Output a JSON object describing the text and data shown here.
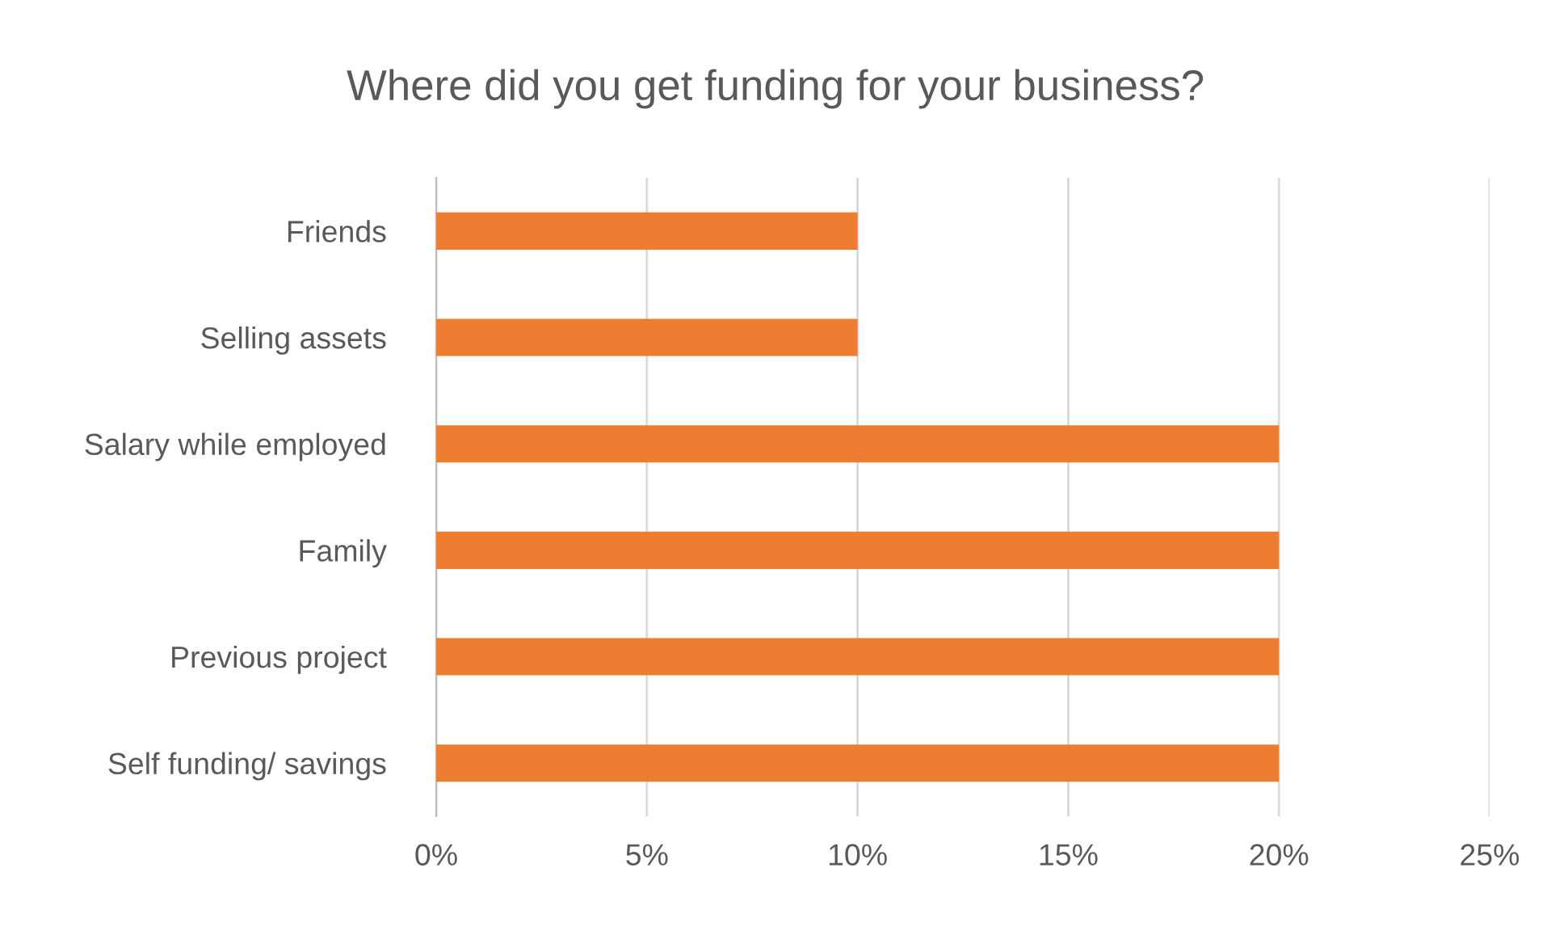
{
  "chart_data": {
    "type": "bar",
    "orientation": "horizontal",
    "title": "Where did you get funding for your business?",
    "categories": [
      "Friends",
      "Selling assets",
      "Salary while employed",
      "Family",
      "Previous project",
      "Self funding/ savings"
    ],
    "values": [
      10,
      10,
      20,
      20,
      20,
      20
    ],
    "color": "#ed7d31",
    "xlim": [
      0,
      25
    ],
    "xticks": [
      {
        "value": 0,
        "label": "0%"
      },
      {
        "value": 5,
        "label": "5%"
      },
      {
        "value": 10,
        "label": "10%"
      },
      {
        "value": 15,
        "label": "15%"
      },
      {
        "value": 20,
        "label": "20%"
      },
      {
        "value": 25,
        "label": "25%"
      }
    ],
    "grid": "x"
  }
}
